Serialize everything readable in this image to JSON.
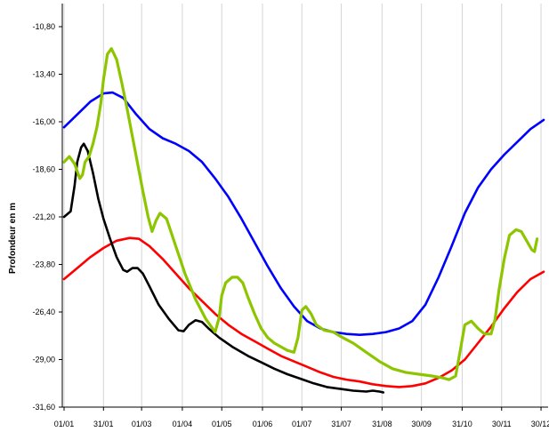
{
  "chart_data": {
    "type": "line",
    "title": "",
    "xlabel": "",
    "ylabel": "Profondeur en m",
    "x_ticks": [
      "01/01",
      "31/01",
      "01/03",
      "01/04",
      "01/05",
      "01/06",
      "01/07",
      "31/07",
      "31/08",
      "30/09",
      "31/10",
      "30/11",
      "30/12"
    ],
    "x_tick_days": [
      0,
      30,
      59,
      90,
      120,
      151,
      181,
      211,
      242,
      272,
      303,
      333,
      363
    ],
    "y_ticks": [
      -10.8,
      -13.4,
      -16.0,
      -18.6,
      -21.2,
      -23.8,
      -26.4,
      -29.0,
      -31.6
    ],
    "y_tick_labels": [
      "-10,80",
      "-13,40",
      "-16,00",
      "-18,60",
      "-21,20",
      "-23,80",
      "-26,40",
      "-29,00",
      "-31,60"
    ],
    "xlim": [
      0,
      365
    ],
    "ylim": [
      -31.6,
      -10.8
    ],
    "grid": "vertical",
    "legend": "none",
    "series": [
      {
        "color": "#0000ff",
        "points": [
          [
            0,
            -16.3
          ],
          [
            10,
            -15.6
          ],
          [
            20,
            -14.9
          ],
          [
            30,
            -14.45
          ],
          [
            37,
            -14.4
          ],
          [
            45,
            -14.7
          ],
          [
            55,
            -15.6
          ],
          [
            65,
            -16.4
          ],
          [
            75,
            -16.9
          ],
          [
            85,
            -17.2
          ],
          [
            95,
            -17.6
          ],
          [
            105,
            -18.2
          ],
          [
            115,
            -19.1
          ],
          [
            125,
            -20.1
          ],
          [
            135,
            -21.3
          ],
          [
            145,
            -22.6
          ],
          [
            155,
            -23.9
          ],
          [
            165,
            -25.1
          ],
          [
            175,
            -26.1
          ],
          [
            185,
            -26.9
          ],
          [
            195,
            -27.3
          ],
          [
            205,
            -27.5
          ],
          [
            215,
            -27.6
          ],
          [
            225,
            -27.65
          ],
          [
            235,
            -27.6
          ],
          [
            245,
            -27.5
          ],
          [
            255,
            -27.3
          ],
          [
            265,
            -26.9
          ],
          [
            275,
            -26.0
          ],
          [
            285,
            -24.5
          ],
          [
            295,
            -22.8
          ],
          [
            305,
            -21.0
          ],
          [
            315,
            -19.6
          ],
          [
            325,
            -18.6
          ],
          [
            335,
            -17.8
          ],
          [
            345,
            -17.1
          ],
          [
            355,
            -16.4
          ],
          [
            365,
            -15.9
          ]
        ]
      },
      {
        "color": "#ff0000",
        "points": [
          [
            0,
            -24.6
          ],
          [
            10,
            -24.0
          ],
          [
            20,
            -23.4
          ],
          [
            30,
            -22.9
          ],
          [
            40,
            -22.5
          ],
          [
            50,
            -22.35
          ],
          [
            57,
            -22.4
          ],
          [
            65,
            -22.8
          ],
          [
            75,
            -23.5
          ],
          [
            85,
            -24.3
          ],
          [
            95,
            -25.1
          ],
          [
            105,
            -25.8
          ],
          [
            115,
            -26.5
          ],
          [
            125,
            -27.1
          ],
          [
            135,
            -27.6
          ],
          [
            145,
            -28.0
          ],
          [
            155,
            -28.4
          ],
          [
            165,
            -28.8
          ],
          [
            175,
            -29.1
          ],
          [
            185,
            -29.4
          ],
          [
            195,
            -29.7
          ],
          [
            205,
            -29.95
          ],
          [
            215,
            -30.1
          ],
          [
            225,
            -30.2
          ],
          [
            235,
            -30.35
          ],
          [
            245,
            -30.45
          ],
          [
            255,
            -30.5
          ],
          [
            265,
            -30.45
          ],
          [
            275,
            -30.3
          ],
          [
            285,
            -30.0
          ],
          [
            295,
            -29.6
          ],
          [
            305,
            -29.0
          ],
          [
            315,
            -28.1
          ],
          [
            325,
            -27.2
          ],
          [
            335,
            -26.2
          ],
          [
            345,
            -25.3
          ],
          [
            355,
            -24.6
          ],
          [
            365,
            -24.2
          ]
        ]
      },
      {
        "color": "#000000",
        "points": [
          [
            0,
            -21.2
          ],
          [
            5,
            -20.9
          ],
          [
            8,
            -19.5
          ],
          [
            10,
            -18.2
          ],
          [
            13,
            -17.4
          ],
          [
            15,
            -17.2
          ],
          [
            18,
            -17.6
          ],
          [
            22,
            -18.8
          ],
          [
            26,
            -20.2
          ],
          [
            30,
            -21.3
          ],
          [
            35,
            -22.4
          ],
          [
            40,
            -23.4
          ],
          [
            45,
            -24.1
          ],
          [
            48,
            -24.2
          ],
          [
            52,
            -24.0
          ],
          [
            56,
            -24.0
          ],
          [
            60,
            -24.3
          ],
          [
            65,
            -25.0
          ],
          [
            72,
            -26.0
          ],
          [
            80,
            -26.8
          ],
          [
            87,
            -27.4
          ],
          [
            91,
            -27.45
          ],
          [
            95,
            -27.1
          ],
          [
            100,
            -26.85
          ],
          [
            105,
            -26.95
          ],
          [
            110,
            -27.3
          ],
          [
            118,
            -27.8
          ],
          [
            128,
            -28.3
          ],
          [
            140,
            -28.8
          ],
          [
            150,
            -29.15
          ],
          [
            160,
            -29.5
          ],
          [
            170,
            -29.8
          ],
          [
            180,
            -30.05
          ],
          [
            190,
            -30.3
          ],
          [
            200,
            -30.5
          ],
          [
            210,
            -30.6
          ],
          [
            220,
            -30.7
          ],
          [
            230,
            -30.75
          ],
          [
            235,
            -30.7
          ],
          [
            240,
            -30.75
          ],
          [
            243,
            -30.8
          ]
        ]
      },
      {
        "color": "#8dc600",
        "points": [
          [
            0,
            -18.2
          ],
          [
            4,
            -17.9
          ],
          [
            8,
            -18.3
          ],
          [
            12,
            -19.1
          ],
          [
            14,
            -18.9
          ],
          [
            16,
            -18.2
          ],
          [
            19,
            -17.9
          ],
          [
            22,
            -17.2
          ],
          [
            25,
            -16.3
          ],
          [
            28,
            -15.0
          ],
          [
            30,
            -13.7
          ],
          [
            33,
            -12.3
          ],
          [
            36,
            -12.0
          ],
          [
            40,
            -12.6
          ],
          [
            44,
            -13.9
          ],
          [
            48,
            -15.3
          ],
          [
            52,
            -16.8
          ],
          [
            56,
            -18.3
          ],
          [
            60,
            -19.8
          ],
          [
            64,
            -21.2
          ],
          [
            67,
            -22.0
          ],
          [
            70,
            -21.4
          ],
          [
            73,
            -21.0
          ],
          [
            78,
            -21.3
          ],
          [
            85,
            -22.8
          ],
          [
            92,
            -24.3
          ],
          [
            100,
            -25.7
          ],
          [
            108,
            -26.8
          ],
          [
            115,
            -27.5
          ],
          [
            118,
            -26.7
          ],
          [
            120,
            -25.5
          ],
          [
            123,
            -24.8
          ],
          [
            128,
            -24.5
          ],
          [
            132,
            -24.5
          ],
          [
            136,
            -24.8
          ],
          [
            140,
            -25.6
          ],
          [
            145,
            -26.5
          ],
          [
            150,
            -27.3
          ],
          [
            155,
            -27.8
          ],
          [
            160,
            -28.1
          ],
          [
            165,
            -28.3
          ],
          [
            170,
            -28.5
          ],
          [
            175,
            -28.6
          ],
          [
            178,
            -27.8
          ],
          [
            181,
            -26.3
          ],
          [
            184,
            -26.1
          ],
          [
            188,
            -26.5
          ],
          [
            192,
            -27.1
          ],
          [
            198,
            -27.4
          ],
          [
            205,
            -27.5
          ],
          [
            212,
            -27.8
          ],
          [
            220,
            -28.1
          ],
          [
            230,
            -28.6
          ],
          [
            240,
            -29.1
          ],
          [
            250,
            -29.5
          ],
          [
            260,
            -29.7
          ],
          [
            270,
            -29.8
          ],
          [
            280,
            -29.9
          ],
          [
            288,
            -30.0
          ],
          [
            293,
            -30.1
          ],
          [
            298,
            -29.9
          ],
          [
            302,
            -28.3
          ],
          [
            305,
            -27.1
          ],
          [
            310,
            -26.9
          ],
          [
            315,
            -27.3
          ],
          [
            320,
            -27.6
          ],
          [
            325,
            -27.6
          ],
          [
            328,
            -26.8
          ],
          [
            331,
            -25.2
          ],
          [
            335,
            -23.5
          ],
          [
            339,
            -22.2
          ],
          [
            344,
            -21.9
          ],
          [
            348,
            -22.0
          ],
          [
            352,
            -22.5
          ],
          [
            356,
            -23.0
          ],
          [
            358,
            -23.1
          ],
          [
            360,
            -22.4
          ]
        ]
      }
    ]
  }
}
